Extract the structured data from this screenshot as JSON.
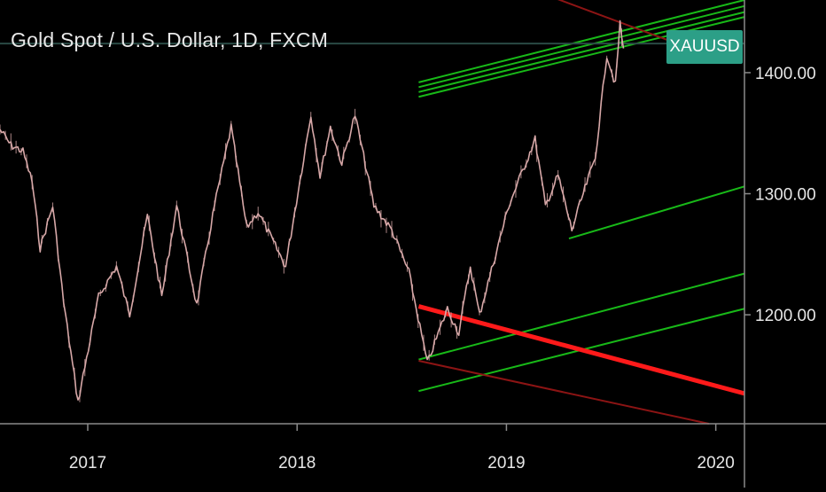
{
  "header": {
    "title": "Gold Spot / U.S. Dollar, 1D, FXCM"
  },
  "badge": {
    "symbol": "XAUUSD"
  },
  "colors": {
    "background": "#000000",
    "axis_text": "#e6e6e6",
    "axis_line": "#8a8a8a",
    "candle": "#d7a8a8",
    "green_line": "#18b918",
    "red_line": "#ff1a1a",
    "dark_red_line": "#8c1414",
    "badge_bg": "#2c9f87",
    "price_level_line": "#2a4a44"
  },
  "chart_data": {
    "type": "line",
    "title": "Gold Spot / U.S. Dollar, 1D, FXCM",
    "symbol": "XAUUSD",
    "x_axis": {
      "type": "date",
      "range": [
        "2016-08-01",
        "2020-02-20"
      ],
      "tick_labels": [
        "2017",
        "2018",
        "2019",
        "2020"
      ],
      "ticks": [
        "2017-01-01",
        "2018-01-01",
        "2019-01-01",
        "2020-01-01"
      ]
    },
    "y_axis": {
      "position": "right",
      "range": [
        1110,
        1460
      ],
      "tick_labels": [
        "1200.00",
        "1300.00",
        "1400.00"
      ],
      "ticks": [
        1200,
        1300,
        1400
      ]
    },
    "grid": false,
    "series": [
      {
        "style": "candles",
        "points": [
          [
            "2016-08-01",
            1353
          ],
          [
            "2016-08-20",
            1340
          ],
          [
            "2016-09-10",
            1335
          ],
          [
            "2016-09-26",
            1310
          ],
          [
            "2016-10-10",
            1255
          ],
          [
            "2016-11-01",
            1290
          ],
          [
            "2016-11-20",
            1210
          ],
          [
            "2016-12-15",
            1128
          ],
          [
            "2017-01-20",
            1215
          ],
          [
            "2017-02-20",
            1240
          ],
          [
            "2017-03-15",
            1200
          ],
          [
            "2017-04-15",
            1282
          ],
          [
            "2017-05-10",
            1215
          ],
          [
            "2017-06-05",
            1290
          ],
          [
            "2017-07-10",
            1208
          ],
          [
            "2017-08-10",
            1290
          ],
          [
            "2017-09-08",
            1355
          ],
          [
            "2017-10-05",
            1272
          ],
          [
            "2017-10-25",
            1285
          ],
          [
            "2017-12-12",
            1240
          ],
          [
            "2018-01-25",
            1365
          ],
          [
            "2018-02-10",
            1315
          ],
          [
            "2018-02-28",
            1355
          ],
          [
            "2018-03-20",
            1325
          ],
          [
            "2018-04-12",
            1365
          ],
          [
            "2018-05-15",
            1290
          ],
          [
            "2018-06-15",
            1270
          ],
          [
            "2018-07-15",
            1235
          ],
          [
            "2018-08-16",
            1160
          ],
          [
            "2018-09-20",
            1205
          ],
          [
            "2018-10-10",
            1185
          ],
          [
            "2018-10-30",
            1240
          ],
          [
            "2018-11-15",
            1200
          ],
          [
            "2019-01-05",
            1290
          ],
          [
            "2019-02-20",
            1345
          ],
          [
            "2019-03-10",
            1290
          ],
          [
            "2019-04-01",
            1315
          ],
          [
            "2019-04-25",
            1270
          ],
          [
            "2019-05-15",
            1300
          ],
          [
            "2019-06-05",
            1330
          ],
          [
            "2019-06-25",
            1415
          ],
          [
            "2019-07-10",
            1390
          ],
          [
            "2019-07-18",
            1440
          ],
          [
            "2019-07-24",
            1420
          ]
        ]
      }
    ],
    "drawings": [
      {
        "color": "green",
        "from": [
          "2018-08-01",
          1380
        ],
        "to": [
          "2020-02-20",
          1446
        ]
      },
      {
        "color": "green",
        "from": [
          "2018-08-01",
          1384
        ],
        "to": [
          "2020-02-20",
          1450
        ]
      },
      {
        "color": "green",
        "from": [
          "2018-08-01",
          1388
        ],
        "to": [
          "2020-02-20",
          1455
        ]
      },
      {
        "color": "green",
        "from": [
          "2018-08-01",
          1392
        ],
        "to": [
          "2020-02-20",
          1460
        ]
      },
      {
        "color": "green",
        "from": [
          "2019-04-20",
          1263
        ],
        "to": [
          "2020-02-20",
          1306
        ]
      },
      {
        "color": "green",
        "from": [
          "2018-08-01",
          1163
        ],
        "to": [
          "2020-02-20",
          1234
        ]
      },
      {
        "color": "green",
        "from": [
          "2018-08-01",
          1137
        ],
        "to": [
          "2020-02-20",
          1205
        ]
      },
      {
        "color": "red",
        "weight": "thick",
        "from": [
          "2018-08-01",
          1207
        ],
        "to": [
          "2020-02-20",
          1135
        ]
      },
      {
        "color": "dark-red",
        "from": [
          "2018-08-01",
          1162
        ],
        "to": [
          "2019-12-20",
          1110
        ]
      },
      {
        "color": "dark-red",
        "from": [
          "2019-02-01",
          1471
        ],
        "to": [
          "2019-10-20",
          1425
        ]
      },
      {
        "color": "price-level",
        "from": [
          "2016-08-01",
          1424
        ],
        "to": [
          "2020-02-20",
          1424
        ]
      }
    ]
  }
}
